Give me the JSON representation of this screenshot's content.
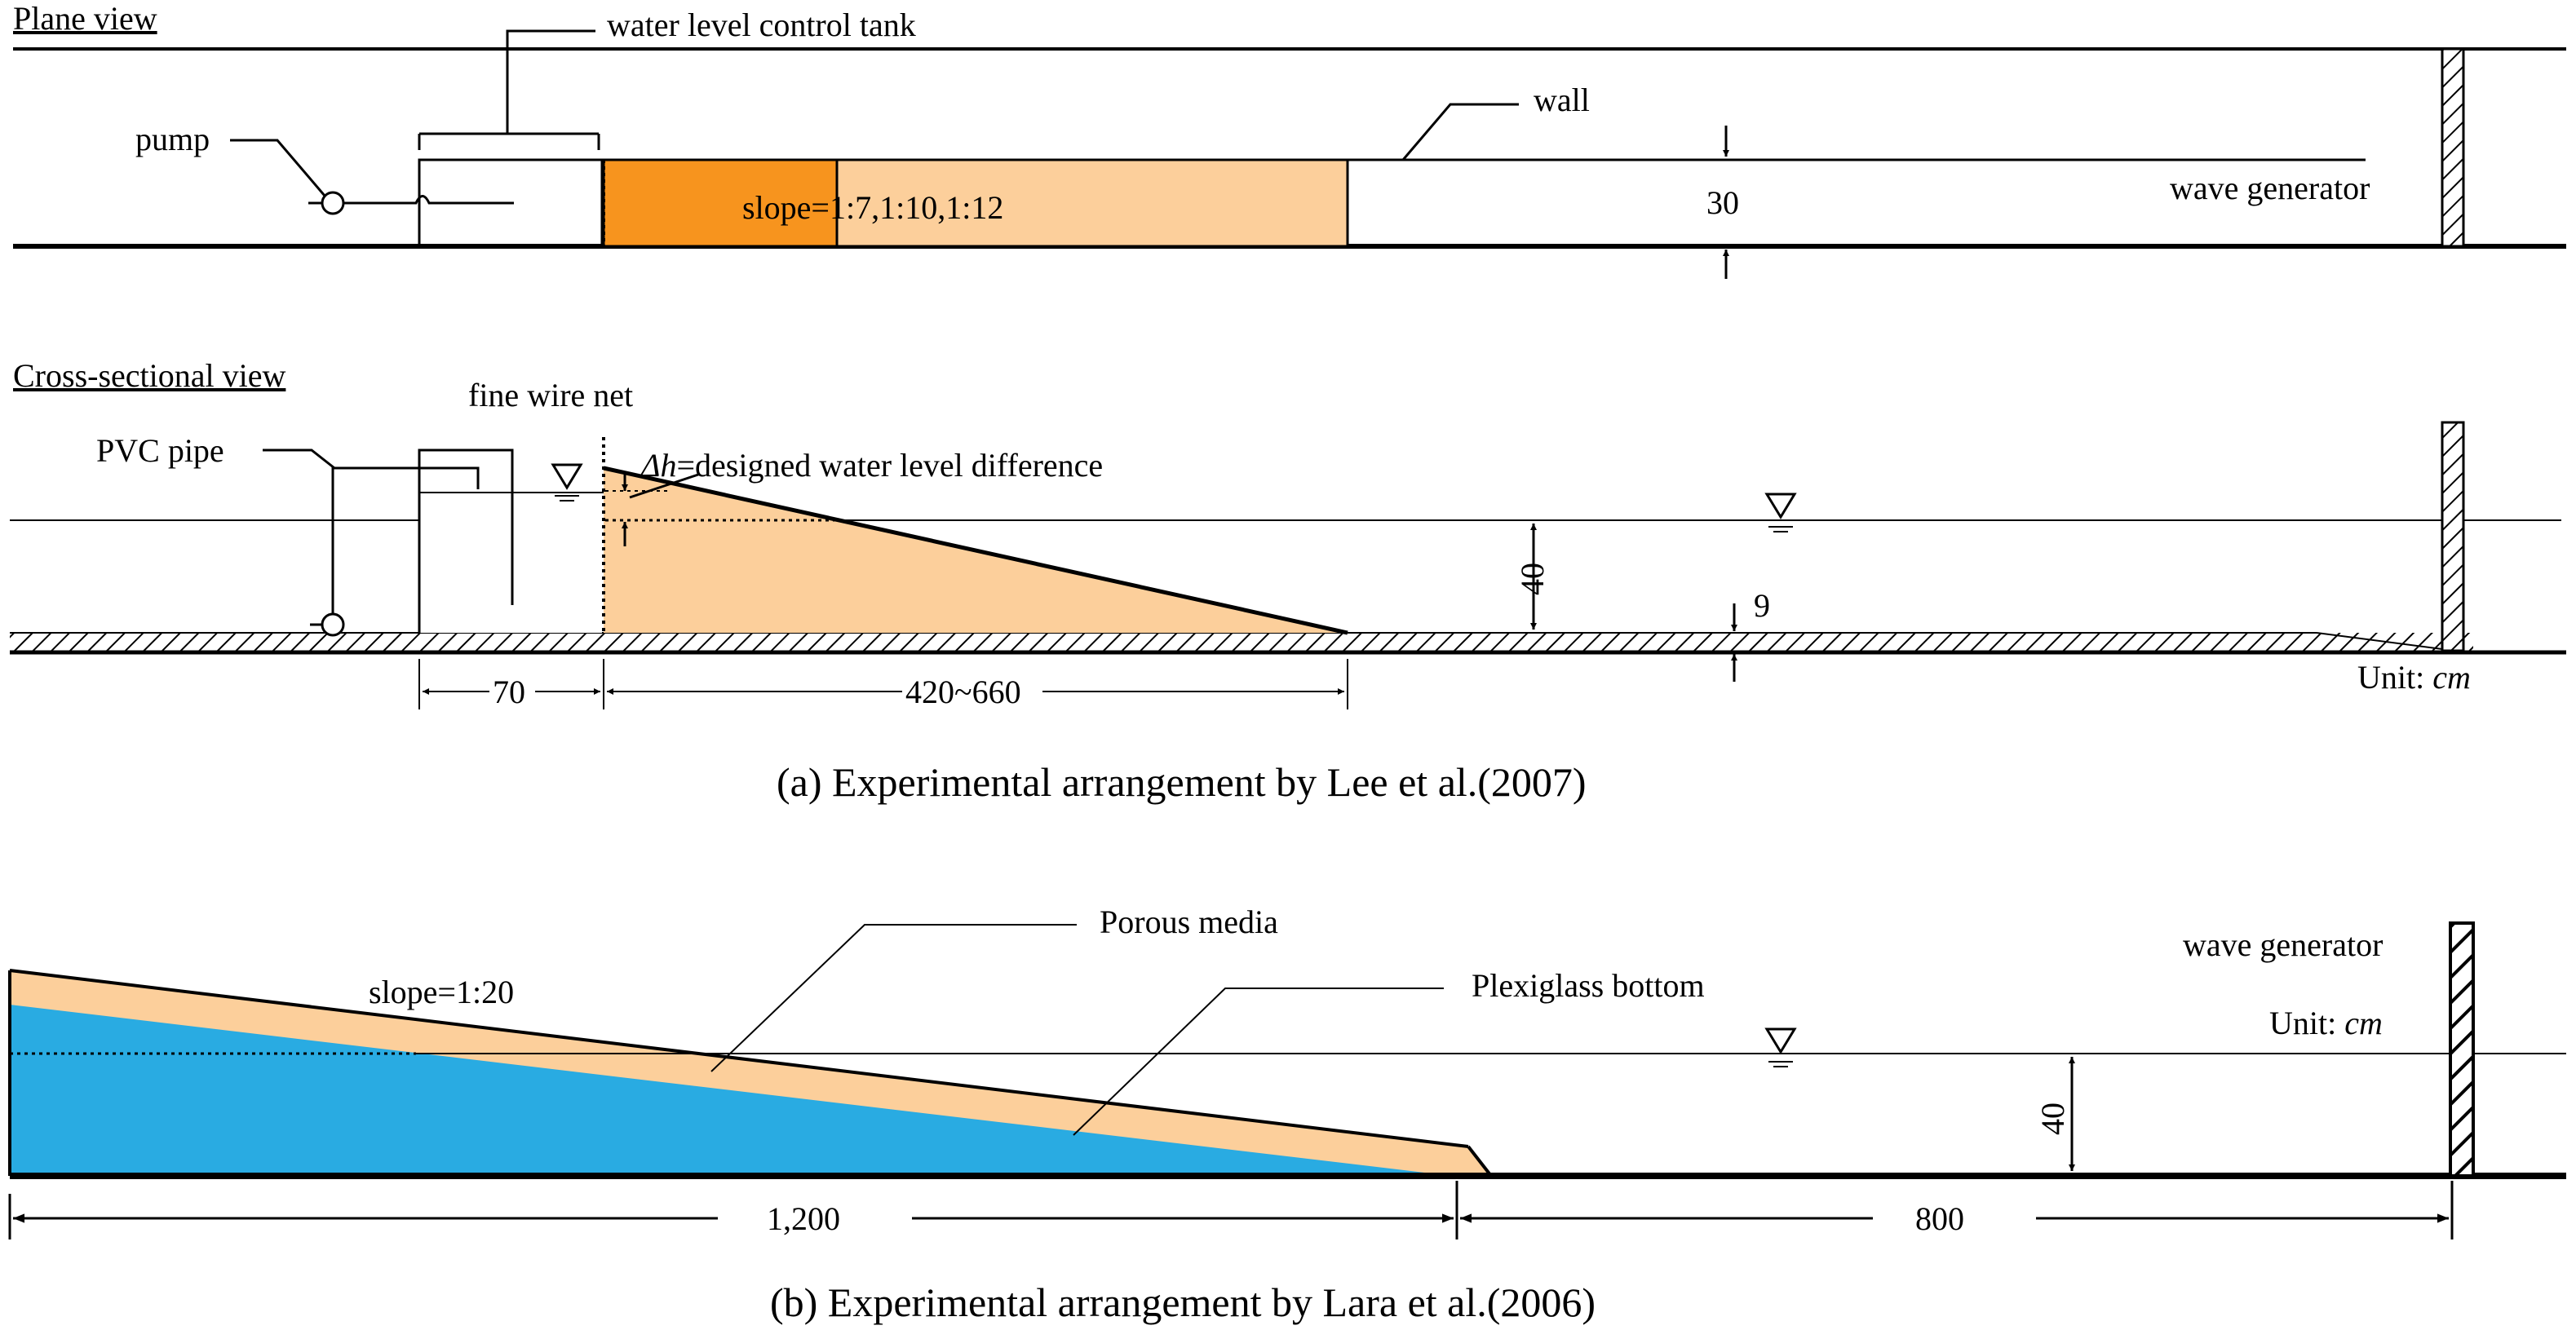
{
  "colors": {
    "sand": "#FCCF9B",
    "sand_dark": "#F7941E",
    "water": "#29ABE2",
    "line": "#000000"
  },
  "panel_a": {
    "plan_title": "Plane view",
    "label_tank": "water level control tank",
    "label_pump": "pump",
    "label_slope": "slope=1:7,1:10,1:12",
    "label_wall": "wall",
    "label_width": "30",
    "label_wave_generator": "wave generator",
    "section_title": "Cross-sectional view",
    "label_fine_wire_net": "fine wire net",
    "label_pvc_pipe": "PVC pipe",
    "label_delta_symbol": "Δh",
    "label_delta_text": "=designed water level difference",
    "label_depth": "40",
    "label_step": "9",
    "dim_tank": "70",
    "dim_slope_length": "420~660",
    "unit_prefix": "Unit: ",
    "unit_value": "cm",
    "caption": "(a)  Experimental  arrangement  by  Lee  et  al.(2007)"
  },
  "panel_b": {
    "label_porous": "Porous media",
    "label_plexiglass": "Plexiglass bottom",
    "label_slope": "slope=1:20",
    "label_wave_generator": "wave generator",
    "unit_prefix": "Unit: ",
    "unit_value": "cm",
    "label_depth": "40",
    "dim_left": "1,200",
    "dim_right": "800",
    "caption": "(b)  Experimental  arrangement  by  Lara  et  al.(2006)"
  }
}
